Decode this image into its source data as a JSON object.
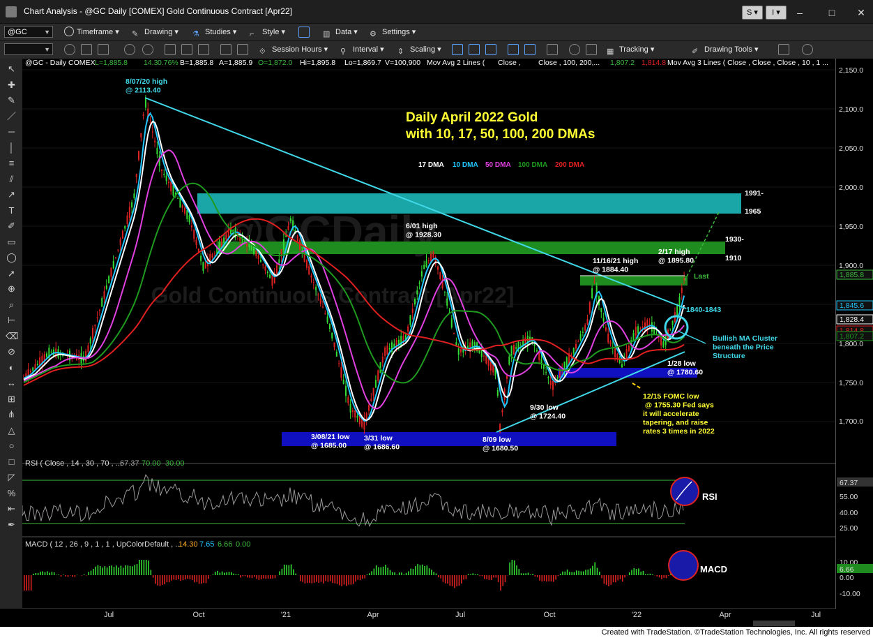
{
  "window": {
    "title": "Chart Analysis - @GC Daily [COMEX] Gold Continuous Contract [Apr22]",
    "btn_s": "S",
    "btn_i": "I",
    "minimize": "–",
    "maximize": "□",
    "close": "✕"
  },
  "toolbar1": {
    "symbol": "@GC",
    "timeframe": "Timeframe",
    "drawing": "Drawing",
    "studies": "Studies",
    "style": "Style",
    "data": "Data",
    "settings": "Settings"
  },
  "toolbar2": {
    "session_hours": "Session Hours",
    "interval": "Interval",
    "scaling": "Scaling",
    "tracking": "Tracking",
    "drawing_tools": "Drawing Tools"
  },
  "sidebar": {
    "icons": [
      "cursor-icon",
      "crosshair-icon",
      "pencil-icon",
      "trendline-icon",
      "horizontal-line-icon",
      "vertical-line-icon",
      "fib-icon",
      "channel-icon",
      "ray-icon",
      "text-tool-icon",
      "brush-icon",
      "rectangle-tool-icon",
      "ellipse-tool-icon",
      "arrow-icon",
      "magnet-icon",
      "zoom-icon",
      "ruler-icon",
      "eraser-icon",
      "lock-icon",
      "hide-icon",
      "measure-icon",
      "gann-icon",
      "pitchfork-icon",
      "triangle-icon",
      "circle-tool-icon",
      "square-tool-icon",
      "fibfan-icon",
      "percent-icon",
      "arrow-left-icon",
      "pen-icon"
    ]
  },
  "header": {
    "symbol_line": "@GC - Daily  COMEX",
    "L": "L=1,885.8",
    "chg": "14.3",
    "pct": "0.76%",
    "B": "B=1,885.8",
    "A": "A=1,885.9",
    "O": "O=1,872.0",
    "Hi": "Hi=1,895.8",
    "Lo": "Lo=1,869.7",
    "V": "V=100,900",
    "mov_avg2": "Mov Avg 2 Lines (",
    "close1": "Close ,",
    "close2": "Close ,  100,  200,...",
    "ma_val1": "1,807.2",
    "ma_val2": "1,814.8",
    "mov_avg3": "Mov Avg 3 Lines (  Close ,  Close ,  Close ,  10 ,  1 ..."
  },
  "watermark": {
    "line1": "@GCDaily",
    "line2": "Gold Continuous Contract [Apr22]"
  },
  "chart_title": {
    "line1": "Daily April 2022 Gold",
    "line2": "with 10, 17, 50, 100, 200 DMAs"
  },
  "legend": [
    {
      "label": "17 DMA",
      "color": "#ffffff"
    },
    {
      "label": "10 DMA",
      "color": "#22c7ff"
    },
    {
      "label": "50 DMA",
      "color": "#e040e0"
    },
    {
      "label": "100 DMA",
      "color": "#1e9a1e"
    },
    {
      "label": "200 DMA",
      "color": "#e02020"
    }
  ],
  "annotations": {
    "high_2020": "8/07/20 high\n@ 2113.40",
    "high_0601": "6/01 high\n@ 1928.30",
    "high_1116": "11/16/21 high\n@ 1884.40",
    "high_0217": "2/17 high\n@ 1895.80",
    "low_0308": "3/08/21 low\n@ 1685.00",
    "low_0331": "3/31 low\n@ 1686.60",
    "low_0809": "8/09 low\n@ 1680.50",
    "low_0930": "9/30 low\n@ 1724.40",
    "low_0128": "1/28 low\n@ 1780.60",
    "fomc": "12/15 FOMC low\n @ 1755.30 Fed says\nit will accelerate\ntapering, and raise\nrates 3 times in 2022",
    "cluster": "Bullish MA Cluster\nbeneath the Price\nStructure",
    "level_1991": "1991-",
    "level_1965": "1965",
    "level_1930": "1930-",
    "level_1910": "1910",
    "range_1840": "1840-1843",
    "last": "Last"
  },
  "price_axis": {
    "ticks": [
      "2,150.0",
      "2,100.0",
      "2,050.0",
      "2,000.0",
      "1,950.0",
      "1,900.0",
      "1,850.0",
      "1,800.0",
      "1,750.0",
      "1,700.0"
    ],
    "tags": [
      {
        "value": "1,885.8",
        "color": "#3cba3c"
      },
      {
        "value": "1,845.6",
        "color": "#22c7ff"
      },
      {
        "value": "1,828.4",
        "color": "#ffffff"
      },
      {
        "value": "1,814.8",
        "color": "#e02020"
      },
      {
        "value": "1,807.2",
        "color": "#1e9a1e"
      }
    ]
  },
  "rsi": {
    "label": "RSI ( Close , 14 , 30 , 70 , ...",
    "value": "67.37",
    "ob": "70.00",
    "os": "30.00",
    "tag": "RSI",
    "ticks": [
      "67.37",
      "55.00",
      "40.00",
      "25.00"
    ]
  },
  "macd": {
    "label": "MACD ( 12 , 26 , 9 , 1 , 1 , UpColorDefault , ...",
    "v1": "14.30",
    "v2": "7.65",
    "v3": "6.66",
    "v4": "0.00",
    "tag": "MACD",
    "ticks": [
      "10.00",
      "6.66",
      "0.00",
      "-10.00"
    ]
  },
  "time_axis": [
    "Jul",
    "Oct",
    "'21",
    "Apr",
    "Jul",
    "Oct",
    "'22",
    "Apr",
    "Jul"
  ],
  "footer": "Created with TradeStation. ©TradeStation Technologies, Inc. All rights reserved",
  "colors": {
    "bull": "#33dd33",
    "bear": "#dd2222",
    "trendline": "#40d8e8",
    "zone_teal": "#1aa6a6",
    "zone_green": "#1e8c1e",
    "zone_blue": "#1010c0",
    "annotation_yellow": "#ffff33"
  }
}
